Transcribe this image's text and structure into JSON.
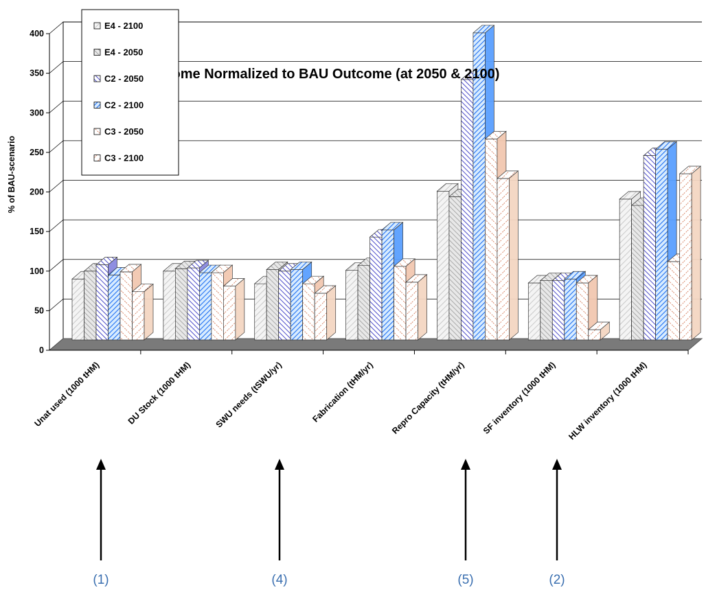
{
  "chart_data": {
    "type": "bar",
    "title": "Outcome Normalized to BAU Outcome (at 2050 & 2100)",
    "ylabel": "% of BAU-scenario",
    "xlabel": "",
    "ylim": [
      0,
      400
    ],
    "yticks": [
      0,
      50,
      100,
      150,
      200,
      250,
      300,
      350,
      400
    ],
    "grid": true,
    "legend_position": "top-left",
    "categories": [
      "Unat used (1000 tHM)",
      "DU Stock (1000 tHM)",
      "SWU needs (tSWU/yr)",
      "Fabrication (tHM/yr)",
      "Repro Capacity (tHM/yr)",
      "SF inventory (1000 tHM)",
      "HLW inventory (1000 tHM)"
    ],
    "series": [
      {
        "name": "E4 - 2100",
        "color": "#e6e6e6",
        "values": [
          77,
          87,
          71,
          88,
          188,
          72,
          178
        ]
      },
      {
        "name": "E4 - 2050",
        "color": "#d4d4d4",
        "values": [
          87,
          90,
          89,
          94,
          181,
          75,
          170
        ]
      },
      {
        "name": "C2 - 2050",
        "color": "#8888e0",
        "values": [
          95,
          91,
          87,
          130,
          329,
          75,
          233
        ]
      },
      {
        "name": "C2 - 2100",
        "color": "#5aa0ff",
        "values": [
          82,
          85,
          89,
          139,
          388,
          77,
          241
        ]
      },
      {
        "name": "C3 - 2050",
        "color": "#f2c8b0",
        "values": [
          86,
          85,
          71,
          93,
          254,
          72,
          99
        ]
      },
      {
        "name": "C3 - 2100",
        "color": "#f4d6c2",
        "values": [
          61,
          68,
          59,
          73,
          204,
          13,
          210
        ]
      }
    ]
  },
  "annotations": [
    {
      "label": "(1)",
      "category_index": 0
    },
    {
      "label": "(4)",
      "category_index": 2
    },
    {
      "label": "(5)",
      "category_index": 4
    },
    {
      "label": "(2)",
      "category_index": 5
    }
  ],
  "colors": {
    "floor": "#7a7a7a",
    "grid": "#000000",
    "annotation": "#3a6fb0",
    "edge": "#333333"
  }
}
